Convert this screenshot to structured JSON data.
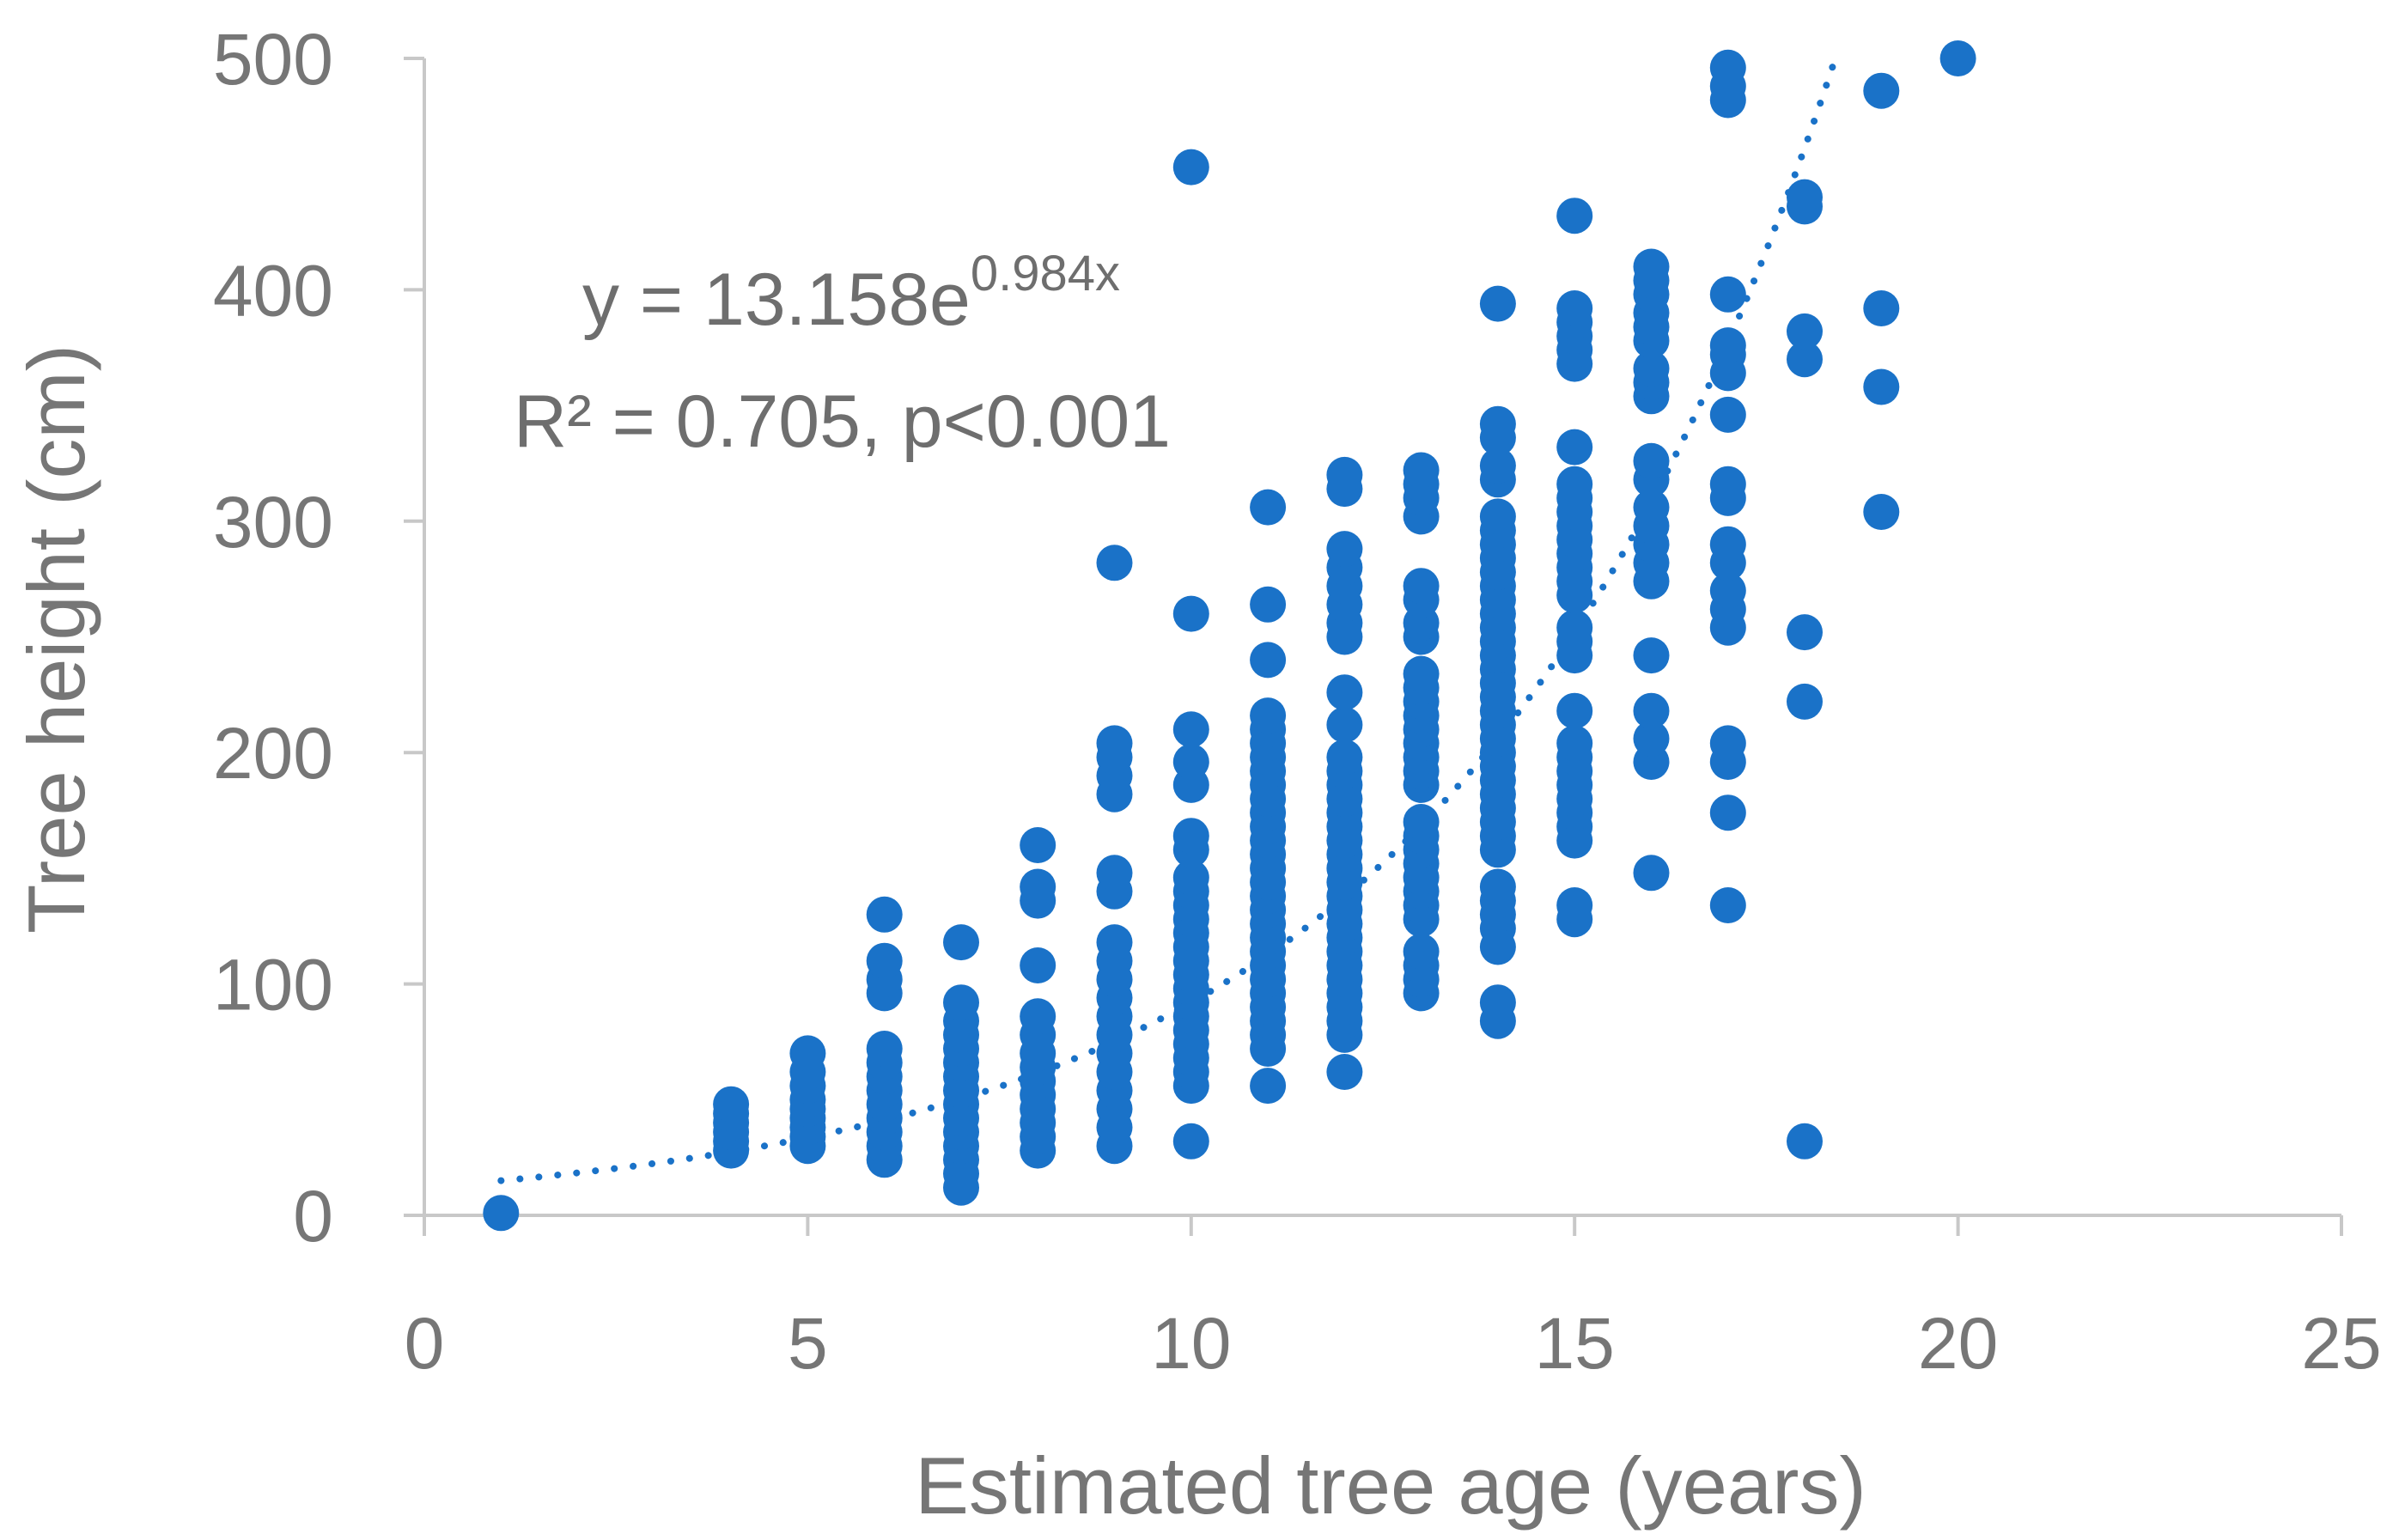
{
  "chart_data": {
    "type": "scatter",
    "xlabel": "Estimated tree age (years)",
    "ylabel": "Tree height (cm)",
    "xlim": [
      0,
      25
    ],
    "ylim": [
      0,
      500
    ],
    "x_ticks": [
      "0",
      "5",
      "10",
      "15",
      "20",
      "25"
    ],
    "y_ticks": [
      "0",
      "100",
      "200",
      "300",
      "400",
      "500"
    ],
    "grid": false,
    "legend": "none",
    "point_color": "#1a72c8",
    "trendline": {
      "type": "exponential",
      "a": 13.158,
      "b": 0.984,
      "x_range": [
        1,
        18.4
      ],
      "style": "dotted",
      "color": "#1a72c8"
    },
    "annotations": {
      "equation_prefix": "y = 13.158e",
      "equation_exponent": "0.984x",
      "stats": "R² = 0.705, p<0.001"
    },
    "columns": [
      {
        "x": 1,
        "y": [
          1
        ]
      },
      {
        "x": 4,
        "y": [
          28,
          32,
          36,
          40,
          44,
          48
        ]
      },
      {
        "x": 5,
        "y": [
          30,
          34,
          38,
          42,
          46,
          50,
          56,
          62,
          70
        ]
      },
      {
        "x": 6,
        "y": [
          24,
          30,
          36,
          42,
          48,
          54,
          60,
          66,
          72,
          96,
          102,
          110,
          130
        ]
      },
      {
        "x": 7,
        "y": [
          12,
          18,
          24,
          30,
          36,
          42,
          48,
          54,
          60,
          66,
          72,
          78,
          84,
          92,
          118
        ]
      },
      {
        "x": 8,
        "y": [
          28,
          34,
          40,
          46,
          52,
          58,
          64,
          70,
          78,
          86,
          108,
          136,
          142,
          160
        ]
      },
      {
        "x": 9,
        "y": [
          30,
          38,
          46,
          54,
          62,
          70,
          78,
          86,
          94,
          102,
          110,
          118,
          140,
          148,
          182,
          190,
          198,
          204,
          282
        ]
      },
      {
        "x": 10,
        "y": [
          32,
          56,
          62,
          68,
          74,
          80,
          86,
          92,
          98,
          104,
          110,
          116,
          122,
          128,
          134,
          140,
          146,
          158,
          164,
          186,
          196,
          210,
          260,
          453
        ]
      },
      {
        "x": 11,
        "y": [
          56,
          72,
          78,
          84,
          90,
          96,
          102,
          108,
          114,
          120,
          126,
          132,
          138,
          144,
          150,
          156,
          162,
          168,
          174,
          180,
          186,
          192,
          198,
          204,
          210,
          216,
          240,
          264,
          306
        ]
      },
      {
        "x": 12,
        "y": [
          62,
          78,
          84,
          90,
          96,
          102,
          108,
          114,
          120,
          126,
          132,
          138,
          144,
          150,
          156,
          162,
          168,
          174,
          180,
          186,
          192,
          198,
          212,
          226,
          250,
          256,
          264,
          272,
          280,
          288,
          314,
          320
        ]
      },
      {
        "x": 13,
        "y": [
          96,
          102,
          108,
          114,
          128,
          134,
          140,
          146,
          152,
          158,
          164,
          170,
          186,
          192,
          198,
          204,
          210,
          216,
          222,
          228,
          234,
          250,
          256,
          266,
          272,
          302,
          310,
          316,
          322
        ]
      },
      {
        "x": 14,
        "y": [
          84,
          92,
          116,
          124,
          130,
          136,
          142,
          158,
          164,
          170,
          176,
          182,
          188,
          194,
          200,
          206,
          212,
          218,
          224,
          230,
          236,
          242,
          248,
          254,
          260,
          266,
          272,
          278,
          284,
          290,
          296,
          302,
          318,
          324,
          336,
          342,
          394
        ]
      },
      {
        "x": 15,
        "y": [
          128,
          134,
          162,
          168,
          174,
          180,
          186,
          192,
          198,
          204,
          218,
          242,
          248,
          254,
          268,
          274,
          280,
          286,
          292,
          298,
          304,
          310,
          316,
          332,
          368,
          374,
          380,
          386,
          392,
          432
        ]
      },
      {
        "x": 16,
        "y": [
          148,
          196,
          206,
          218,
          242,
          274,
          282,
          290,
          298,
          306,
          318,
          326,
          354,
          360,
          366,
          378,
          384,
          390,
          398,
          404,
          410
        ]
      },
      {
        "x": 17,
        "y": [
          134,
          174,
          196,
          204,
          254,
          262,
          270,
          282,
          290,
          310,
          316,
          346,
          364,
          372,
          376,
          398,
          482,
          488,
          496
        ]
      },
      {
        "x": 18,
        "y": [
          32,
          222,
          252,
          370,
          382,
          436,
          440
        ]
      },
      {
        "x": 19,
        "y": [
          304,
          358,
          392,
          486
        ]
      },
      {
        "x": 20,
        "y": [
          500
        ]
      }
    ]
  }
}
